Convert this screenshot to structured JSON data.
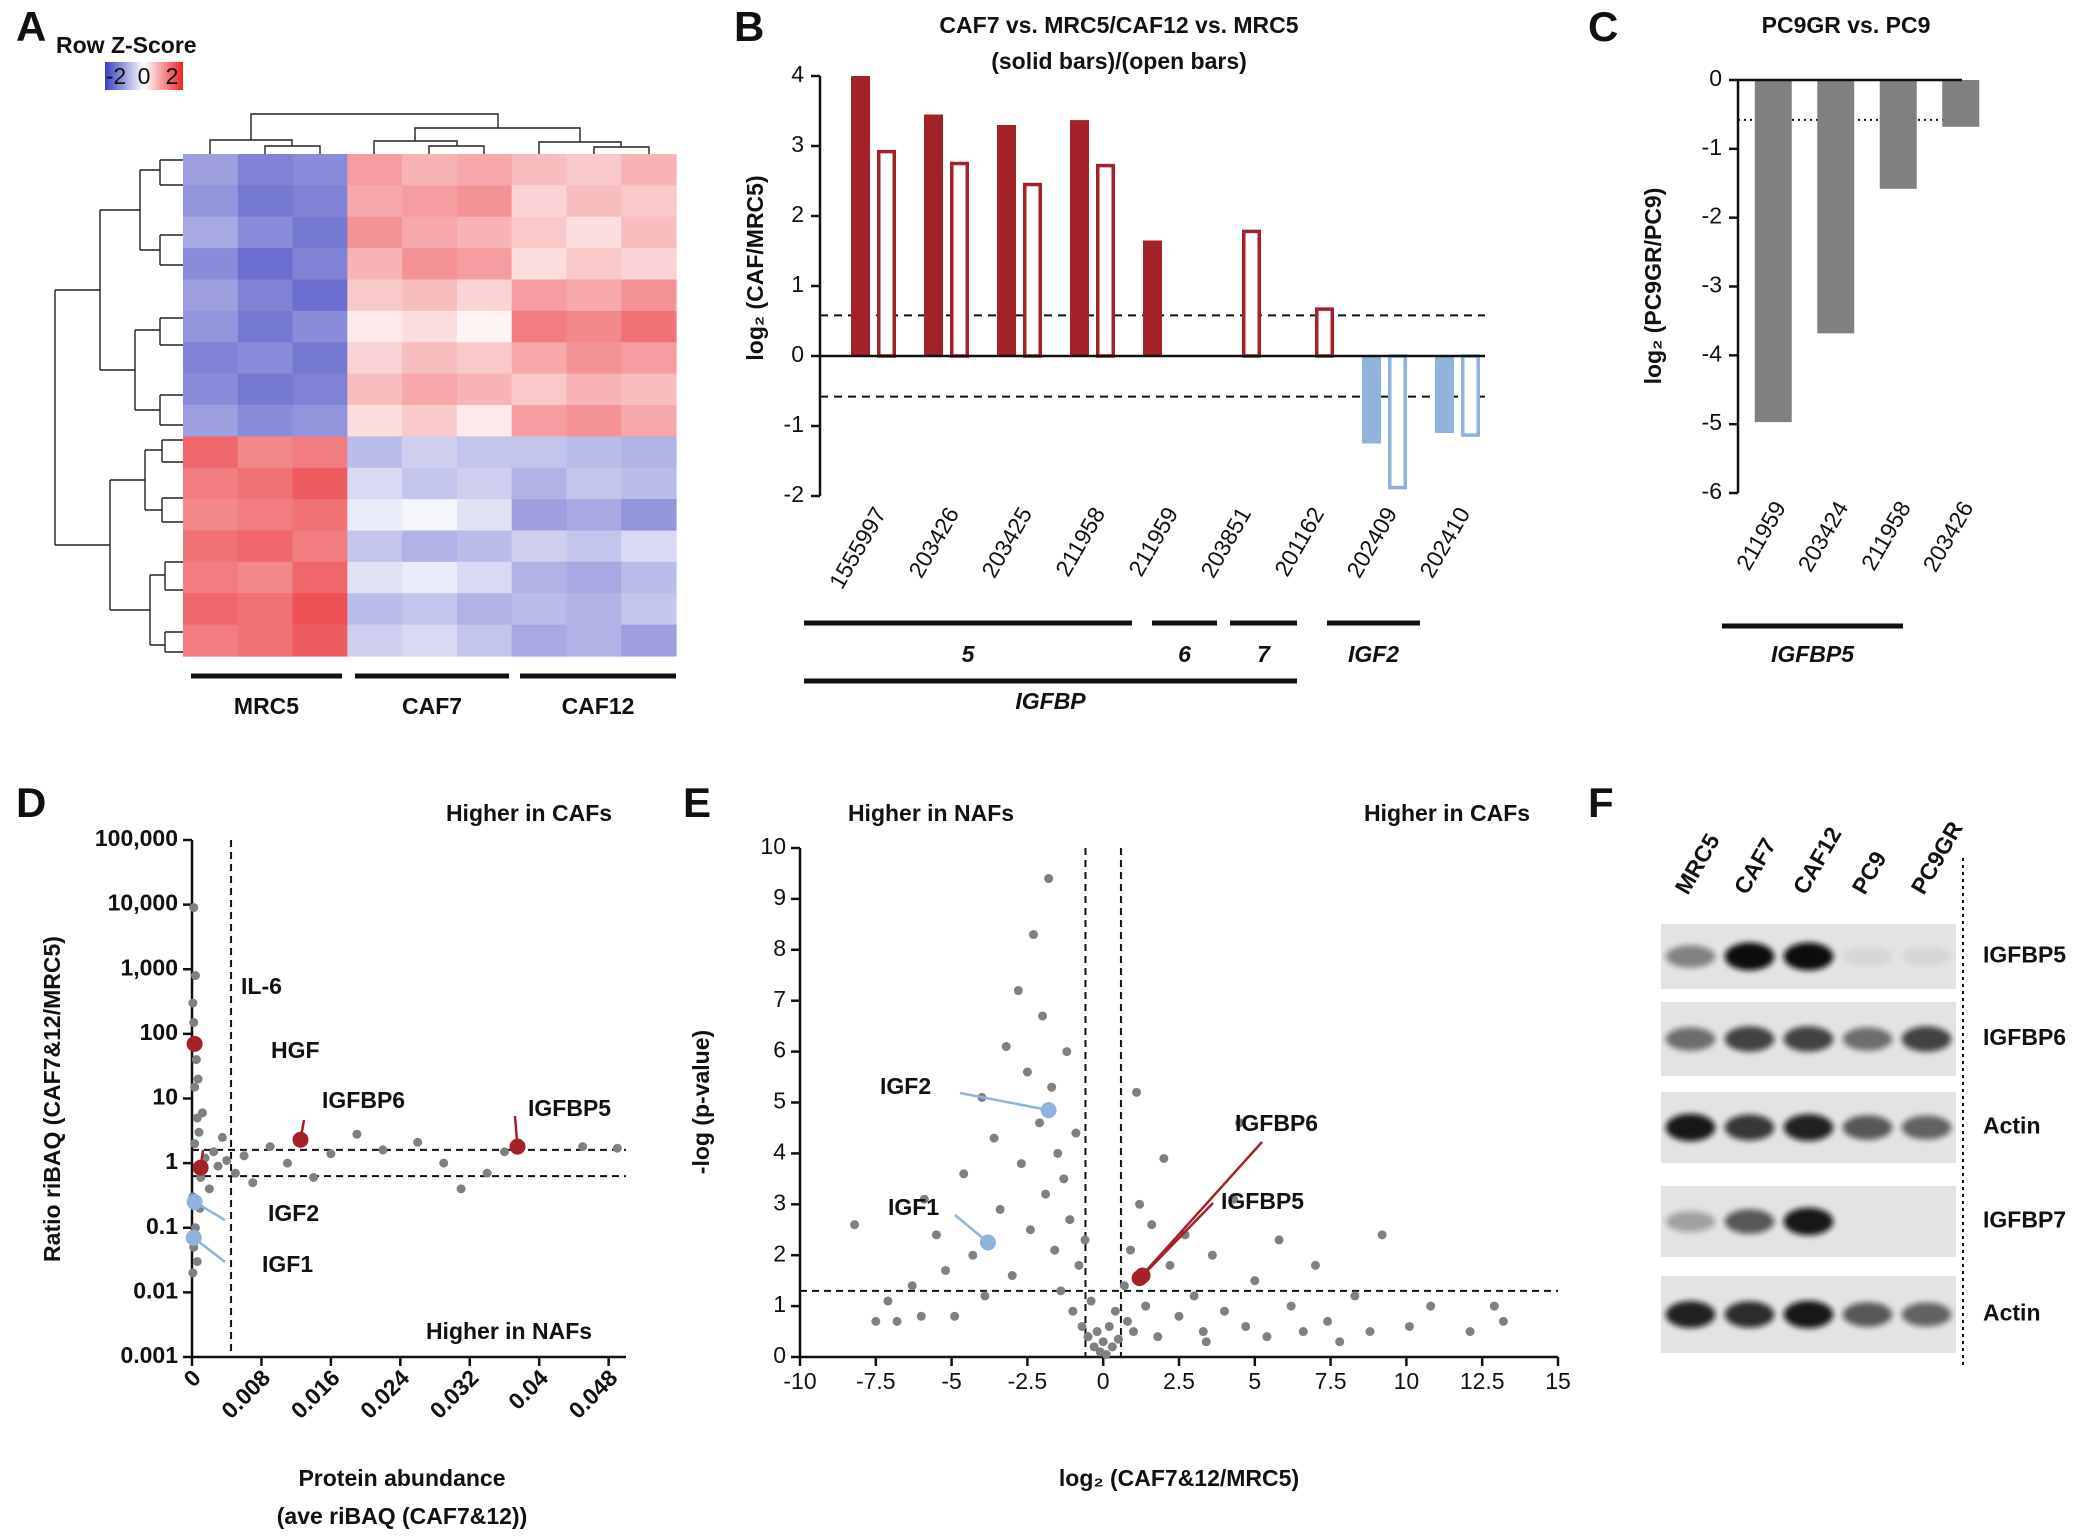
{
  "chart_data": [
    {
      "panel": "A",
      "type": "heatmap",
      "legend_title": "Row Z-Score",
      "clim": [
        -2,
        2
      ],
      "colorbar_ticks": [
        -2,
        0,
        2
      ],
      "colors": [
        "#3b3fbf",
        "#ffffff",
        "#e8262b"
      ],
      "groups": [
        "MRC5",
        "CAF7",
        "CAF12"
      ],
      "values": [
        [
          -1.0,
          -1.3,
          -1.2,
          0.9,
          0.7,
          0.8,
          0.6,
          0.5,
          0.7
        ],
        [
          -1.1,
          -1.4,
          -1.3,
          0.8,
          0.9,
          1.0,
          0.4,
          0.6,
          0.5
        ],
        [
          -0.9,
          -1.2,
          -1.4,
          1.0,
          0.8,
          0.7,
          0.5,
          0.3,
          0.6
        ],
        [
          -1.2,
          -1.5,
          -1.3,
          0.7,
          1.0,
          0.9,
          0.3,
          0.5,
          0.4
        ],
        [
          -1.0,
          -1.3,
          -1.5,
          0.5,
          0.6,
          0.4,
          0.9,
          0.8,
          1.0
        ],
        [
          -1.1,
          -1.4,
          -1.2,
          0.2,
          0.3,
          0.1,
          1.2,
          1.1,
          1.3
        ],
        [
          -1.3,
          -1.2,
          -1.4,
          0.4,
          0.6,
          0.5,
          0.8,
          1.0,
          0.9
        ],
        [
          -1.2,
          -1.4,
          -1.3,
          0.6,
          0.8,
          0.7,
          0.5,
          0.7,
          0.6
        ],
        [
          -1.0,
          -1.2,
          -1.1,
          0.3,
          0.5,
          0.2,
          0.9,
          1.0,
          0.8
        ],
        [
          1.4,
          1.1,
          1.2,
          -0.7,
          -0.5,
          -0.6,
          -0.6,
          -0.7,
          -0.8
        ],
        [
          1.2,
          1.3,
          1.5,
          -0.4,
          -0.6,
          -0.5,
          -0.8,
          -0.6,
          -0.7
        ],
        [
          1.1,
          1.2,
          1.3,
          -0.2,
          -0.1,
          -0.3,
          -1.0,
          -0.9,
          -1.1
        ],
        [
          1.3,
          1.4,
          1.2,
          -0.6,
          -0.8,
          -0.7,
          -0.5,
          -0.6,
          -0.4
        ],
        [
          1.2,
          1.1,
          1.4,
          -0.3,
          -0.2,
          -0.4,
          -0.8,
          -0.9,
          -0.7
        ],
        [
          1.4,
          1.3,
          1.6,
          -0.7,
          -0.6,
          -0.8,
          -0.7,
          -0.8,
          -0.6
        ],
        [
          1.2,
          1.3,
          1.5,
          -0.5,
          -0.4,
          -0.6,
          -0.9,
          -0.8,
          -1.0
        ]
      ]
    },
    {
      "panel": "B",
      "type": "bar",
      "title": "CAF7 vs. MRC5/CAF12 vs. MRC5",
      "subtitle": "(solid bars)/(open bars)",
      "ylabel": "log₂ (CAF/MRC5)",
      "categories": [
        "1555997",
        "203426",
        "203425",
        "211958",
        "211959",
        "203851",
        "201162",
        "202409",
        "202410"
      ],
      "series": [
        {
          "color": "#a3222a",
          "negative_color": "#8fb3db",
          "filled": true,
          "values": [
            4.0,
            3.45,
            3.3,
            3.37,
            1.65,
            null,
            null,
            -1.25,
            -1.1
          ]
        },
        {
          "color": "#a3222a",
          "negative_color": "#8fb3db",
          "filled": false,
          "values": [
            2.92,
            2.75,
            2.45,
            2.72,
            null,
            1.78,
            0.67,
            -1.88,
            -1.13
          ]
        }
      ],
      "ylim": [
        -2,
        4
      ],
      "yticks": [
        -2,
        -1,
        0,
        1,
        2,
        3,
        4
      ],
      "hlines": [
        0.58,
        -0.58
      ],
      "groups": [
        "5",
        "6",
        "7",
        "IGF2",
        "IGFBP"
      ]
    },
    {
      "panel": "C",
      "type": "bar",
      "title": "PC9GR vs. PC9",
      "ylabel": "log₂ (PC9GR/PC9)",
      "categories": [
        "211959",
        "203424",
        "211958",
        "203426"
      ],
      "series": [
        {
          "color": "#808080",
          "negative_color": "#808080",
          "filled": true,
          "values": [
            -4.97,
            -3.68,
            -1.58,
            -0.68
          ]
        }
      ],
      "ylim": [
        -6,
        0
      ],
      "yticks": [
        -6,
        -5,
        -4,
        -3,
        -2,
        -1,
        0
      ],
      "hlines": [
        -0.58
      ],
      "groups": [
        "IGFBP5"
      ]
    },
    {
      "panel": "D",
      "type": "scatter",
      "xlabel": [
        "Protein abundance",
        "(ave riBAQ (CAF7&12))"
      ],
      "ylabel": "Ratio riBAQ (CAF7&12/MRC5)",
      "log_y": true,
      "xlim": [
        0,
        0.05
      ],
      "xticks": [
        0,
        0.008,
        0.016,
        0.024,
        0.032,
        0.04,
        0.048
      ],
      "ylim": [
        0.001,
        100000
      ],
      "yticks": [
        0.001,
        0.01,
        0.1,
        1,
        10,
        100,
        {
          "value": 1000,
          "label": "1,000"
        },
        {
          "value": 10000,
          "label": "10,000"
        },
        {
          "value": 100000,
          "label": "100,000"
        }
      ],
      "vlines": [
        0.0045
      ],
      "hlines": [
        1.6,
        0.63
      ],
      "series": [
        {
          "color": "#808080",
          "x": [
            0.0001,
            0.0002,
            0.0001,
            0.0003,
            0.0002,
            0.0004,
            0.0001,
            0.0005,
            0.0006,
            0.0003,
            0.0008,
            0.001,
            0.0015,
            0.002,
            0.0025,
            0.003,
            0.0035,
            0.004,
            0.005,
            0.006,
            0.007,
            0.009,
            0.011,
            0.014,
            0.016,
            0.019,
            0.022,
            0.026,
            0.029,
            0.031,
            0.034,
            0.036,
            0.045,
            0.049,
            0.0002,
            0.0007,
            0.0012,
            0.0004,
            0.0006,
            0.0009
          ],
          "y": [
            0.02,
            0.05,
            0.3,
            2,
            9000,
            800,
            300,
            40,
            5,
            15,
            3,
            0.6,
            1.2,
            0.4,
            1.5,
            0.9,
            2.5,
            1.1,
            0.7,
            1.3,
            0.5,
            1.8,
            1.0,
            0.6,
            1.4,
            2.8,
            1.6,
            2.1,
            1.0,
            0.4,
            0.7,
            1.5,
            1.8,
            1.7,
            150,
            20,
            6,
            0.1,
            0.03,
            0.2
          ]
        }
      ],
      "highlights": [
        {
          "label": "IL-6",
          "x": 0.0003,
          "y": 70,
          "color": "#a3222a"
        },
        {
          "label": "HGF",
          "x": 0.001,
          "y": 0.85,
          "color": "#a3222a"
        },
        {
          "label": "IGFBP6",
          "x": 0.0125,
          "y": 2.3,
          "color": "#a3222a"
        },
        {
          "label": "IGFBP5",
          "x": 0.0375,
          "y": 1.8,
          "color": "#a3222a"
        },
        {
          "label": "IGF2",
          "x": 0.0003,
          "y": 0.25,
          "color": "#8fb3db"
        },
        {
          "label": "IGF1",
          "x": 0.0002,
          "y": 0.07,
          "color": "#8fb3db"
        }
      ],
      "annotations": [
        {
          "text": "Higher in CAFs",
          "color": "#a3222a"
        },
        {
          "text": "Higher in NAFs",
          "color": "#8fb3db"
        }
      ]
    },
    {
      "panel": "E",
      "type": "scatter",
      "xlabel": [
        "log₂ (CAF7&12/MRC5)"
      ],
      "ylabel": "-log (p-value)",
      "log_y": false,
      "xlim": [
        -10,
        15
      ],
      "xticks": [
        -10,
        -7.5,
        -5,
        -2.5,
        0,
        2.5,
        5,
        7.5,
        10,
        12.5,
        15
      ],
      "ylim": [
        0,
        10
      ],
      "yticks": [
        0,
        1,
        2,
        3,
        4,
        5,
        6,
        7,
        8,
        9,
        10
      ],
      "vlines": [
        -0.585,
        0.585
      ],
      "hlines": [
        1.3
      ],
      "series": [
        {
          "color": "#808080",
          "x": [
            -8.2,
            -7.1,
            -6.8,
            -6.3,
            -5.9,
            -5.5,
            -5.2,
            -4.9,
            -4.6,
            -4.3,
            -4.0,
            -3.9,
            -3.6,
            -3.4,
            -3.2,
            -3.0,
            -2.8,
            -2.7,
            -2.5,
            -2.4,
            -2.3,
            -2.1,
            -2.0,
            -1.9,
            -1.8,
            -1.7,
            -1.6,
            -1.5,
            -1.4,
            -1.3,
            -1.2,
            -1.1,
            -1.0,
            -0.9,
            -0.8,
            -0.7,
            -0.6,
            -0.5,
            -0.4,
            -0.3,
            -0.2,
            -0.1,
            0,
            0.1,
            0.2,
            0.3,
            0.4,
            0.5,
            0.7,
            0.8,
            0.9,
            1.0,
            1.2,
            1.4,
            1.6,
            1.8,
            2.0,
            2.2,
            2.5,
            2.7,
            3.0,
            3.3,
            3.6,
            4.0,
            4.3,
            4.7,
            5.0,
            5.4,
            5.8,
            6.2,
            6.6,
            7.0,
            7.4,
            7.8,
            8.3,
            8.8,
            9.2,
            10.1,
            10.8,
            12.1,
            12.9,
            13.2,
            -6.0,
            -7.5,
            4.5,
            3.4,
            1.1
          ],
          "y": [
            2.6,
            1.1,
            0.7,
            1.4,
            3.1,
            2.4,
            1.7,
            0.8,
            3.6,
            2.0,
            5.1,
            1.2,
            4.3,
            2.9,
            6.1,
            1.6,
            7.2,
            3.8,
            5.6,
            2.5,
            8.3,
            4.6,
            6.7,
            3.2,
            9.4,
            5.3,
            2.1,
            4.0,
            1.3,
            3.5,
            6.0,
            2.7,
            0.9,
            4.4,
            1.8,
            0.6,
            2.3,
            0.4,
            1.1,
            0.2,
            0.5,
            0.1,
            0.3,
            0.05,
            0.6,
            0.2,
            0.9,
            0.35,
            1.4,
            0.7,
            2.1,
            0.5,
            3.0,
            1.0,
            2.6,
            0.4,
            3.9,
            1.8,
            0.8,
            2.4,
            1.2,
            0.5,
            2.0,
            0.9,
            3.1,
            0.6,
            1.5,
            0.4,
            2.3,
            1.0,
            0.5,
            1.8,
            0.7,
            0.3,
            1.2,
            0.5,
            2.4,
            0.6,
            1.0,
            0.5,
            1.0,
            0.7,
            0.8,
            0.7,
            4.6,
            0.3,
            5.2
          ]
        }
      ],
      "highlights": [
        {
          "label": "IGF2",
          "x": -1.8,
          "y": 4.85,
          "color": "#8fb3db"
        },
        {
          "label": "IGF1",
          "x": -3.8,
          "y": 2.25,
          "color": "#8fb3db"
        },
        {
          "label": "IGFBP6",
          "x": 1.2,
          "y": 1.55,
          "color": "#a3222a"
        },
        {
          "label": "IGFBP5",
          "x": 1.3,
          "y": 1.6,
          "color": "#a3222a"
        }
      ],
      "annotations": [
        {
          "text": "Higher in NAFs",
          "color": "#8fb3db"
        },
        {
          "text": "Higher in CAFs",
          "color": "#a3222a"
        }
      ]
    },
    {
      "panel": "F",
      "type": "blot",
      "lanes": [
        "MRC5",
        "CAF7",
        "CAF12",
        "PC9",
        "PC9GR"
      ],
      "rows": [
        "IGFBP5",
        "IGFBP6",
        "Actin",
        "IGFBP7",
        "Actin"
      ],
      "bands": [
        [
          0.45,
          1,
          1,
          0.06,
          0.06
        ],
        [
          0.55,
          0.75,
          0.75,
          0.55,
          0.75
        ],
        [
          0.95,
          0.8,
          0.9,
          0.65,
          0.6
        ],
        [
          0.3,
          0.65,
          0.95,
          0,
          0
        ],
        [
          0.9,
          0.85,
          0.95,
          0.65,
          0.6
        ]
      ]
    }
  ]
}
